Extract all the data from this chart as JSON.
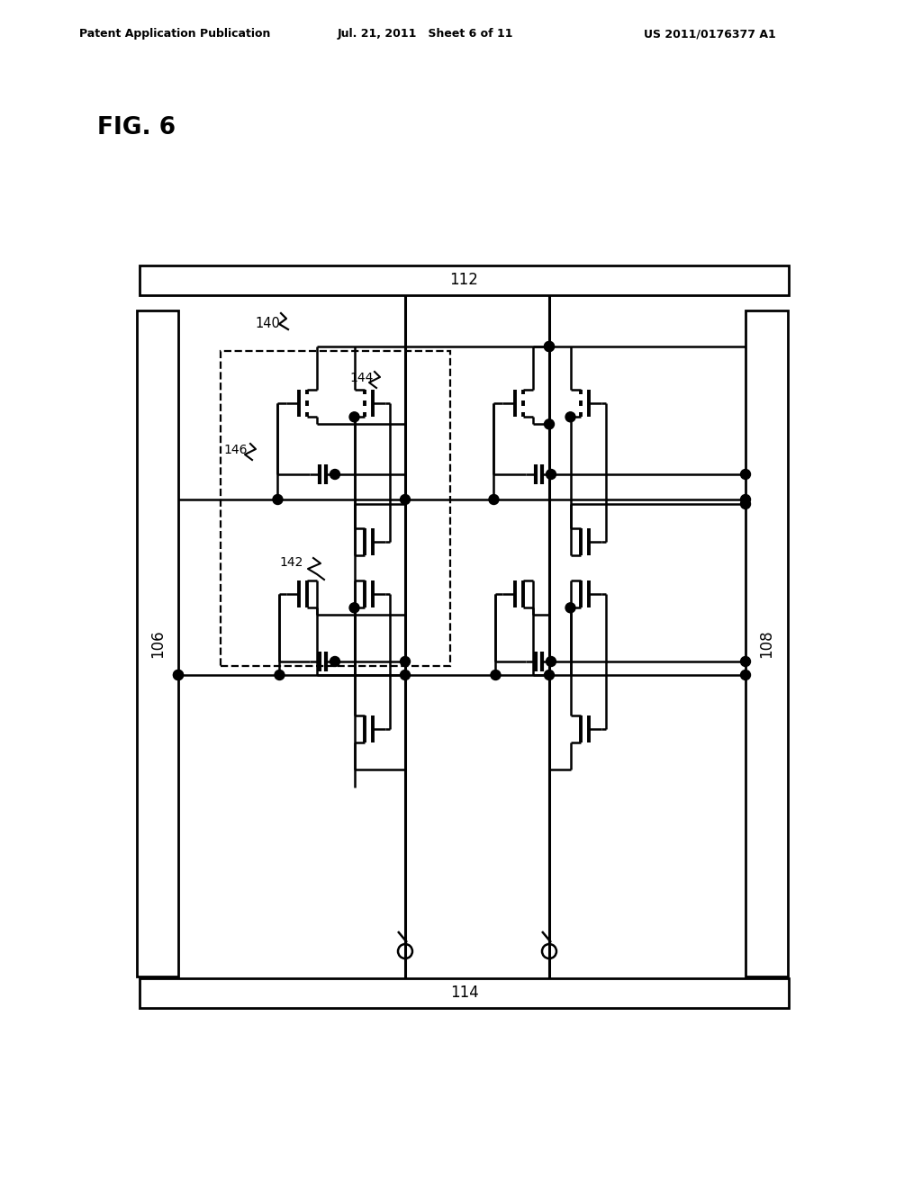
{
  "title_left": "Patent Application Publication",
  "title_mid": "Jul. 21, 2011   Sheet 6 of 11",
  "title_right": "US 2011/0176377 A1",
  "fig_label": "FIG. 6",
  "bg_color": "#ffffff",
  "label_112": "112",
  "label_114": "114",
  "label_106": "106",
  "label_108": "108",
  "label_140": "140",
  "label_142": "142",
  "label_144": "144",
  "label_146": "146"
}
